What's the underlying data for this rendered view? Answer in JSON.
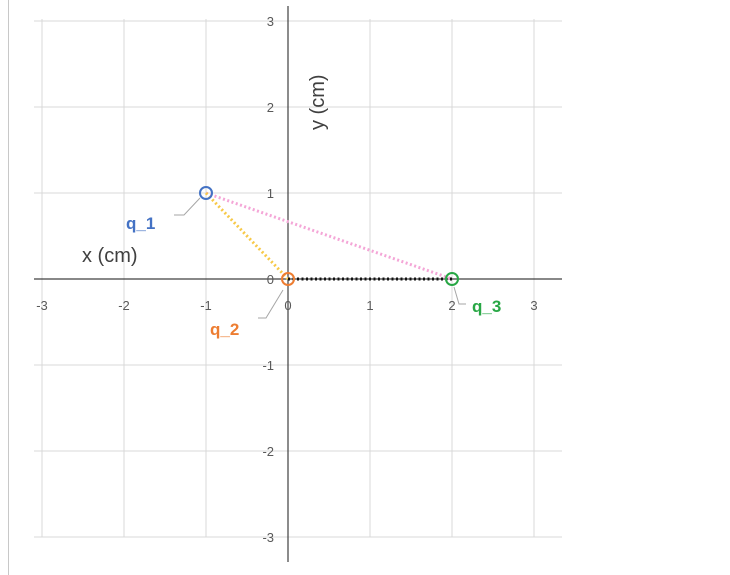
{
  "chart_data": {
    "type": "scatter",
    "xlabel": "x (cm)",
    "ylabel": "y (cm)",
    "xlim": [
      -3,
      3
    ],
    "ylim": [
      -3,
      3
    ],
    "grid": true,
    "x_ticks": [
      "-3",
      "-2",
      "-1",
      "0",
      "1",
      "2",
      "3"
    ],
    "y_ticks": [
      "3",
      "2",
      "1",
      "0",
      "-1",
      "-2",
      "-3"
    ],
    "points": [
      {
        "label": "q_1",
        "x": -1,
        "y": 1,
        "color": "#4472c4"
      },
      {
        "label": "q_2",
        "x": 0,
        "y": 0,
        "color": "#ed7d31"
      },
      {
        "label": "q_3",
        "x": 2,
        "y": 0,
        "color": "#28a745"
      }
    ],
    "segments": [
      {
        "from": "q_1",
        "to": "q_3",
        "color": "#f4a6d7",
        "style": "dotted"
      },
      {
        "from": "q_1",
        "to": "q_2",
        "color": "#f7c948",
        "style": "dotted"
      },
      {
        "from": "q_2",
        "to": "q_3",
        "color": "#111111",
        "style": "dotted"
      }
    ]
  }
}
